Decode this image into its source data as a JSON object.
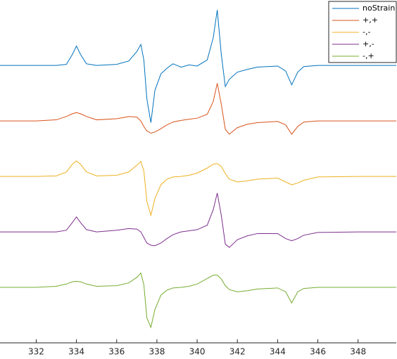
{
  "chart_data": {
    "type": "line",
    "x": [
      330.2,
      332,
      333,
      333.5,
      333.8,
      334,
      334.2,
      334.5,
      335,
      336,
      336.6,
      337,
      337.2,
      337.35,
      337.5,
      337.7,
      337.9,
      338.2,
      338.5,
      338.8,
      339.2,
      339.6,
      340,
      340.5,
      340.8,
      341,
      341.2,
      341.4,
      341.6,
      342,
      342.5,
      343,
      344,
      344.4,
      344.7,
      345,
      345.3,
      346,
      348,
      349.9
    ],
    "series": [
      {
        "name": "noStrain",
        "color": "#0072BD",
        "values": [
          5,
          5,
          5,
          5.02,
          5.2,
          5.35,
          5.2,
          5.03,
          5,
          5.02,
          5.08,
          5.25,
          5.38,
          5.1,
          4.4,
          3.97,
          4.55,
          4.85,
          4.95,
          5.03,
          4.97,
          5.01,
          4.99,
          5.1,
          5.5,
          6,
          5.2,
          4.62,
          4.75,
          4.88,
          4.93,
          4.97,
          4.99,
          4.9,
          4.65,
          4.88,
          4.98,
          5,
          5,
          5
        ]
      },
      {
        "name": "+,+",
        "color": "#D95319",
        "values": [
          4,
          4,
          4.02,
          4.08,
          4.13,
          4.15,
          4.13,
          4.08,
          4.02,
          4.04,
          4.08,
          4.07,
          4,
          3.9,
          3.82,
          3.78,
          3.8,
          3.86,
          3.93,
          3.98,
          4.01,
          4.03,
          4.05,
          4.12,
          4.35,
          4.68,
          4.3,
          3.85,
          3.76,
          3.88,
          3.94,
          3.97,
          3.99,
          3.93,
          3.76,
          3.9,
          3.98,
          4,
          4,
          4
        ]
      },
      {
        "name": "-,-",
        "color": "#EDB120",
        "values": [
          3,
          3,
          3.01,
          3.08,
          3.22,
          3.28,
          3.22,
          3.08,
          3.01,
          3.02,
          3.08,
          3.2,
          3.27,
          3.1,
          2.55,
          2.3,
          2.6,
          2.85,
          2.95,
          2.99,
          3,
          3.02,
          3.06,
          3.15,
          3.22,
          3.23,
          3.18,
          3.05,
          2.95,
          2.9,
          2.92,
          2.95,
          2.97,
          2.9,
          2.85,
          2.88,
          2.93,
          2.99,
          3,
          3
        ]
      },
      {
        "name": "+,-",
        "color": "#7E2F8E",
        "values": [
          2,
          2,
          2,
          2.03,
          2.17,
          2.27,
          2.17,
          2.04,
          2,
          2.03,
          2.06,
          2.05,
          2,
          1.9,
          1.8,
          1.76,
          1.75,
          1.8,
          1.88,
          1.95,
          2,
          2.02,
          2.04,
          2.12,
          2.4,
          2.7,
          2.3,
          1.78,
          1.72,
          1.86,
          1.93,
          1.97,
          1.97,
          1.88,
          1.84,
          1.88,
          1.94,
          1.99,
          2,
          2
        ]
      },
      {
        "name": "-,+",
        "color": "#77AC30",
        "values": [
          1,
          1,
          1.02,
          1.06,
          1.1,
          1.11,
          1.1,
          1.06,
          1.02,
          1.03,
          1.08,
          1.18,
          1.26,
          1.05,
          0.45,
          0.28,
          0.6,
          0.86,
          0.95,
          0.99,
          1,
          1.02,
          1.06,
          1.16,
          1.22,
          1.22,
          1.15,
          1.03,
          0.96,
          0.92,
          0.94,
          0.97,
          0.99,
          0.92,
          0.72,
          0.92,
          0.98,
          1,
          1,
          1
        ]
      }
    ],
    "xlim": [
      330.2,
      349.9
    ],
    "xticks": [
      332,
      334,
      336,
      338,
      340,
      342,
      344,
      346,
      348
    ],
    "ylim": [
      0,
      6.18
    ],
    "legend": "northeast"
  }
}
